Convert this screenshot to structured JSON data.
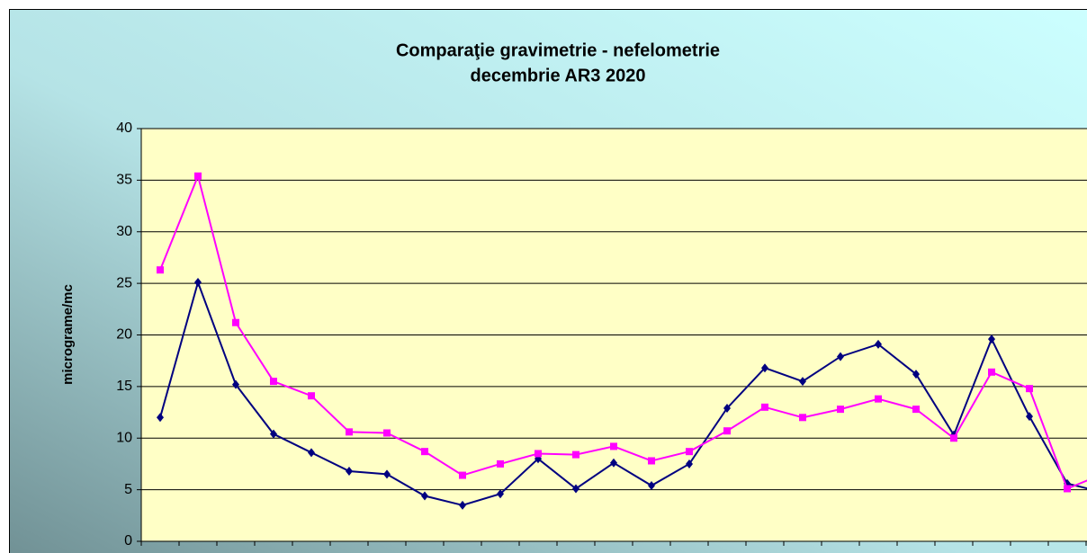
{
  "chart_data": {
    "type": "line",
    "title": [
      "Comparaţie gravimetrie - nefelometrie",
      "decembrie AR3 2020"
    ],
    "y_label": "micrograme/mc",
    "categories": [
      null,
      null,
      null,
      null,
      null,
      null,
      null,
      null,
      null,
      null,
      null,
      null,
      null,
      null,
      null,
      null,
      null,
      null,
      null,
      null,
      null,
      null,
      null,
      null,
      null,
      null
    ],
    "series": [
      {
        "color": "#000080",
        "marker": "diamond",
        "values": [
          12.0,
          25.1,
          15.2,
          10.4,
          8.6,
          6.8,
          6.5,
          4.4,
          3.5,
          4.6,
          8.0,
          5.1,
          7.6,
          5.4,
          7.5,
          12.9,
          16.8,
          15.5,
          17.9,
          19.1,
          16.2,
          10.3,
          19.6,
          12.1,
          5.6,
          4.7
        ]
      },
      {
        "color": "#ff00ff",
        "marker": "square",
        "values": [
          26.3,
          35.4,
          21.2,
          15.5,
          14.1,
          10.6,
          10.5,
          8.7,
          6.4,
          7.5,
          8.5,
          8.4,
          9.2,
          7.8,
          8.7,
          10.7,
          13.0,
          12.0,
          12.8,
          13.8,
          12.8,
          10.0,
          16.4,
          14.8,
          5.1,
          6.6
        ]
      }
    ],
    "ylim": [
      0,
      40
    ],
    "yticks": [
      0,
      5,
      10,
      15,
      20,
      25,
      30,
      35,
      40
    ],
    "grid": true
  }
}
